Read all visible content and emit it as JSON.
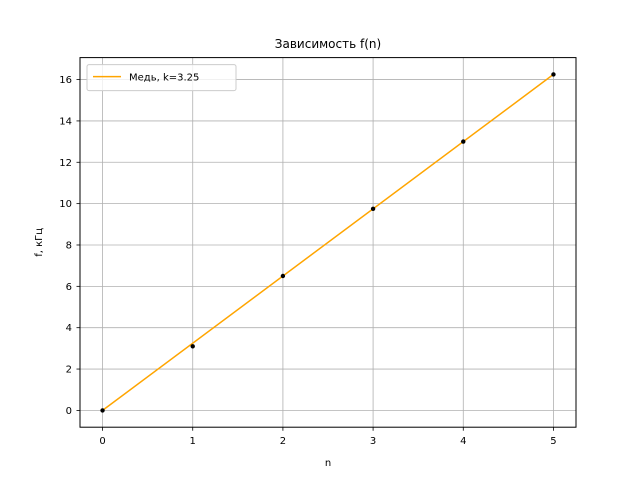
{
  "chart_data": {
    "type": "line",
    "title": "Зависимость f(n)",
    "xlabel": "n",
    "ylabel": "f, кГц",
    "xlim": [
      -0.25,
      5.25
    ],
    "ylim": [
      -0.8125,
      17.0625
    ],
    "x_ticks": [
      0,
      1,
      2,
      3,
      4,
      5
    ],
    "y_ticks": [
      0,
      2,
      4,
      6,
      8,
      10,
      12,
      14,
      16
    ],
    "grid": true,
    "legend_position": "upper-left",
    "series": [
      {
        "name": "Медь, k=3.25",
        "kind": "line",
        "color": "#ffa500",
        "x": [
          0,
          5
        ],
        "y": [
          0,
          16.25
        ]
      },
      {
        "kind": "scatter",
        "color": "#000000",
        "x": [
          0,
          1,
          2,
          3,
          4,
          5
        ],
        "y": [
          0,
          3.1,
          6.5,
          9.75,
          13.0,
          16.25
        ]
      }
    ]
  }
}
